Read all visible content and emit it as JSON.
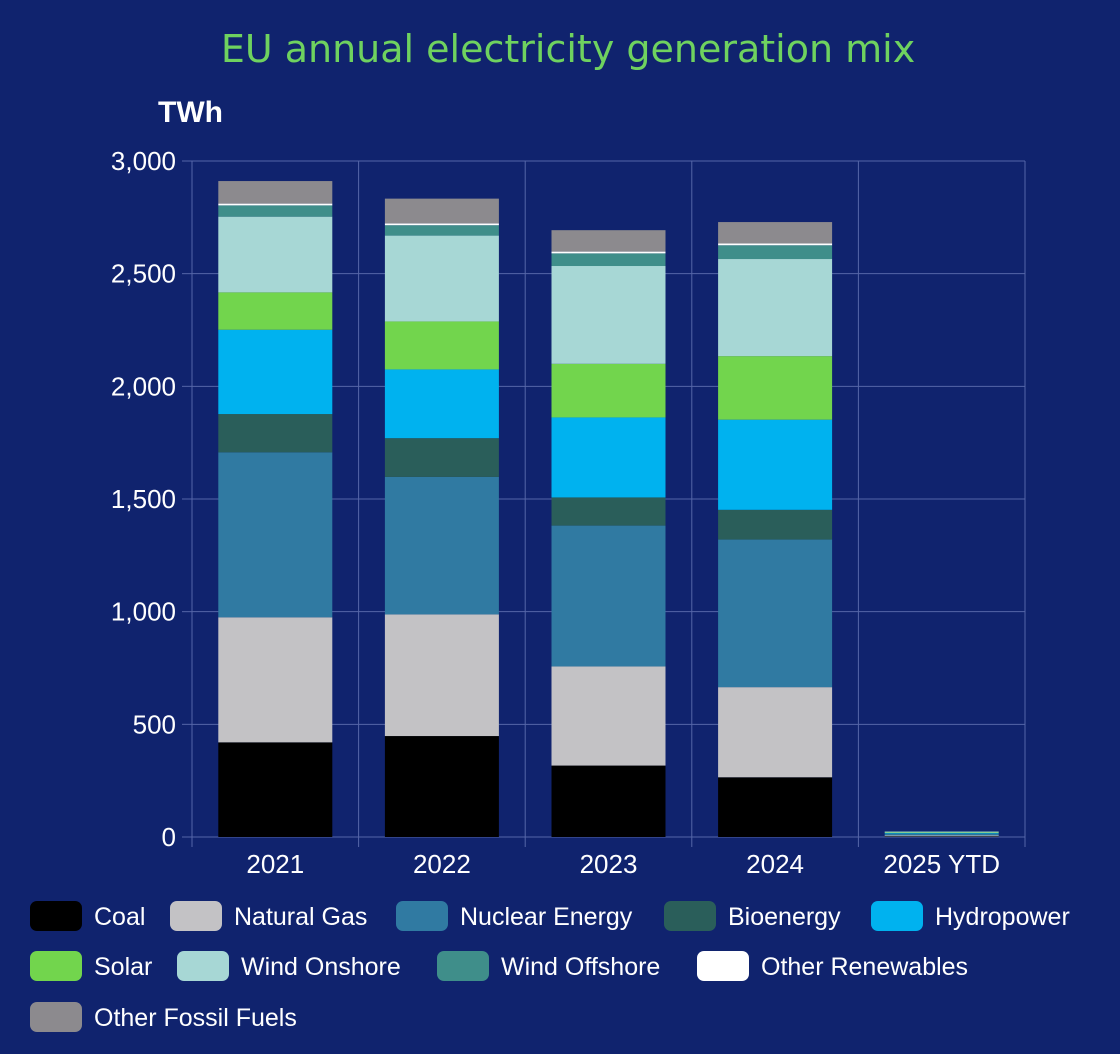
{
  "chart_data": {
    "type": "bar",
    "stacked": true,
    "title": "EU annual electricity generation mix",
    "ylabel": "TWh",
    "xlabel": "",
    "ylim": [
      0,
      3000
    ],
    "yticks": [
      0,
      500,
      1000,
      1500,
      2000,
      2500,
      3000
    ],
    "ytick_labels": [
      "0",
      "500",
      "1,000",
      "1,500",
      "2,000",
      "2,500",
      "3,000"
    ],
    "categories": [
      "2021",
      "2022",
      "2023",
      "2024",
      "2025 YTD"
    ],
    "grid": true,
    "legend_position": "bottom",
    "series": [
      {
        "name": "Coal",
        "color": "#000000",
        "values": [
          420,
          448,
          317,
          265,
          3
        ]
      },
      {
        "name": "Natural Gas",
        "color": "#c3c2c5",
        "values": [
          555,
          540,
          440,
          400,
          4
        ]
      },
      {
        "name": "Nuclear Energy",
        "color": "#307aa2",
        "values": [
          732,
          610,
          625,
          655,
          6
        ]
      },
      {
        "name": "Bioenergy",
        "color": "#2a5e5a",
        "values": [
          170,
          172,
          125,
          132,
          2
        ]
      },
      {
        "name": "Hydropower",
        "color": "#00b2ef",
        "values": [
          374,
          305,
          355,
          400,
          3
        ]
      },
      {
        "name": "Solar",
        "color": "#72d54d",
        "values": [
          166,
          213,
          238,
          282,
          2
        ]
      },
      {
        "name": "Wind Onshore",
        "color": "#a7d7d5",
        "values": [
          336,
          381,
          434,
          431,
          4
        ]
      },
      {
        "name": "Wind Offshore",
        "color": "#3f8e8a",
        "values": [
          50,
          46,
          56,
          61,
          1
        ]
      },
      {
        "name": "Other Renewables",
        "color": "#ffffff",
        "values": [
          8,
          8,
          8,
          8,
          0
        ]
      },
      {
        "name": "Other Fossil Fuels",
        "color": "#8c8a8e",
        "values": [
          100,
          110,
          95,
          95,
          0
        ]
      }
    ]
  }
}
